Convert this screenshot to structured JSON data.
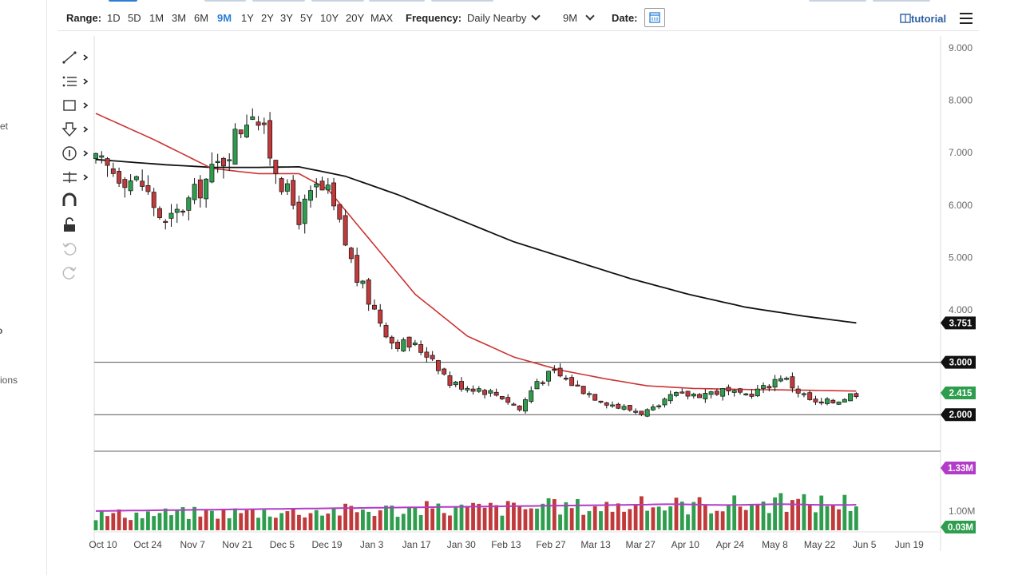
{
  "toolbar": {
    "range_label": "Range:",
    "ranges": [
      "1D",
      "5D",
      "1M",
      "3M",
      "6M",
      "9M",
      "1Y",
      "2Y",
      "3Y",
      "5Y",
      "10Y",
      "20Y",
      "MAX"
    ],
    "active_range": "9M",
    "frequency_label": "Frequency:",
    "frequency_value": "Daily Nearby",
    "period_value": "9M",
    "date_label": "Date:",
    "tutorial_label": "tutorial"
  },
  "left_edge": {
    "fragments": [
      "et",
      "o",
      "ions"
    ]
  },
  "tools": [
    "line-tool-icon",
    "fib-tool-icon",
    "rectangle-tool-icon",
    "arrow-marker-icon",
    "number-marker-icon",
    "measure-tool-icon",
    "magnet-icon",
    "unlock-icon",
    "undo-icon",
    "redo-icon"
  ],
  "colors": {
    "up": "#2e9e4e",
    "down": "#c0393b",
    "ma50": "#cc3333",
    "ma200": "#111111",
    "volume_ma": "#b23bc7",
    "level": "#555555"
  },
  "chart_data": {
    "type": "candlestick",
    "symbol_note": "",
    "x_tick_labels": [
      "Oct 10",
      "Oct 24",
      "Nov 7",
      "Nov 21",
      "Dec 5",
      "Dec 19",
      "Jan 3",
      "Jan 17",
      "Jan 30",
      "Feb 13",
      "Feb 27",
      "Mar 13",
      "Mar 27",
      "Apr 10",
      "Apr 24",
      "May 8",
      "May 22",
      "Jun 5",
      "Jun 19"
    ],
    "y_tick_labels": [
      "9.000",
      "8.000",
      "7.000",
      "6.000",
      "5.000",
      "4.000"
    ],
    "ylim": [
      1.5,
      9.0
    ],
    "price_path": [
      [
        0,
        6.8
      ],
      [
        8,
        6.4
      ],
      [
        12,
        5.6
      ],
      [
        17,
        6.2
      ],
      [
        22,
        6.9
      ],
      [
        27,
        7.9
      ],
      [
        30,
        7.0
      ],
      [
        33,
        6.2
      ],
      [
        35,
        5.8
      ],
      [
        38,
        6.3
      ],
      [
        40,
        6.2
      ],
      [
        42,
        5.6
      ],
      [
        45,
        4.6
      ],
      [
        48,
        4.0
      ],
      [
        51,
        3.4
      ],
      [
        55,
        3.3
      ],
      [
        58,
        3.1
      ],
      [
        61,
        2.6
      ],
      [
        66,
        2.5
      ],
      [
        70,
        2.35
      ],
      [
        73,
        2.1
      ],
      [
        76,
        2.65
      ],
      [
        79,
        2.8
      ],
      [
        82,
        2.6
      ],
      [
        86,
        2.35
      ],
      [
        90,
        2.15
      ],
      [
        94,
        2.05
      ],
      [
        97,
        2.1
      ],
      [
        99,
        2.35
      ],
      [
        104,
        2.4
      ],
      [
        108,
        2.45
      ],
      [
        111,
        2.35
      ],
      [
        115,
        2.5
      ],
      [
        118,
        2.75
      ],
      [
        121,
        2.45
      ],
      [
        124,
        2.2
      ],
      [
        127,
        2.25
      ],
      [
        131,
        2.42
      ]
    ],
    "ma50": [
      [
        0,
        7.75
      ],
      [
        10,
        7.25
      ],
      [
        20,
        6.7
      ],
      [
        28,
        6.6
      ],
      [
        35,
        6.6
      ],
      [
        40,
        6.3
      ],
      [
        46,
        5.5
      ],
      [
        55,
        4.3
      ],
      [
        64,
        3.5
      ],
      [
        72,
        3.1
      ],
      [
        80,
        2.85
      ],
      [
        88,
        2.68
      ],
      [
        95,
        2.55
      ],
      [
        103,
        2.5
      ],
      [
        112,
        2.48
      ],
      [
        120,
        2.47
      ],
      [
        131,
        2.45
      ]
    ],
    "ma200": [
      [
        0,
        6.87
      ],
      [
        12,
        6.77
      ],
      [
        20,
        6.72
      ],
      [
        28,
        6.72
      ],
      [
        35,
        6.73
      ],
      [
        43,
        6.55
      ],
      [
        52,
        6.2
      ],
      [
        62,
        5.75
      ],
      [
        72,
        5.3
      ],
      [
        82,
        4.95
      ],
      [
        92,
        4.6
      ],
      [
        102,
        4.3
      ],
      [
        112,
        4.05
      ],
      [
        122,
        3.88
      ],
      [
        131,
        3.751
      ]
    ],
    "levels": [
      3.0,
      2.0
    ],
    "price_badges": [
      {
        "label": "3.751",
        "value": 3.751,
        "color": "#111111"
      },
      {
        "label": "3.000",
        "value": 3.0,
        "color": "#111111"
      },
      {
        "label": "2.415",
        "value": 2.415,
        "color": "#2e9e4e"
      },
      {
        "label": "2.000",
        "value": 2.0,
        "color": "#111111"
      }
    ],
    "volume": {
      "y_tick_labels": [
        "1.00M"
      ],
      "ma_badge": "1.33M",
      "last_badge": "0.03M",
      "ma_level": 1.33,
      "ylim": [
        0,
        1.6
      ]
    }
  }
}
